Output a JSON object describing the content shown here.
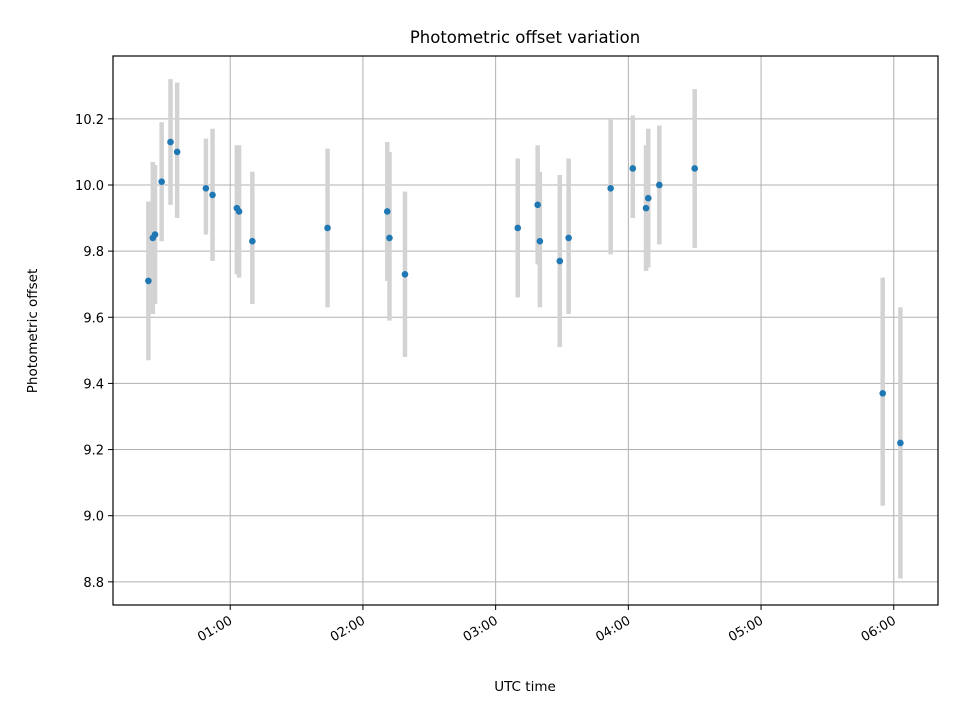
{
  "chart_data": {
    "type": "scatter",
    "title": "Photometric offset variation",
    "xlabel": "UTC time",
    "ylabel": "Photometric offset",
    "x_range": [
      "00:07",
      "06:20"
    ],
    "ylim": [
      8.73,
      10.39
    ],
    "x_ticks": [
      "01:00",
      "02:00",
      "03:00",
      "04:00",
      "05:00",
      "06:00"
    ],
    "y_ticks": [
      8.8,
      9.0,
      9.2,
      9.4,
      9.6,
      9.8,
      10.0,
      10.2
    ],
    "grid": true,
    "colors": {
      "point": "#1f77b4",
      "errorbar": "#d3d3d3",
      "grid": "#b0b0b0"
    },
    "points": [
      {
        "x": "00:23",
        "y": 9.71,
        "lo": 9.47,
        "hi": 9.95
      },
      {
        "x": "00:25",
        "y": 9.84,
        "lo": 9.61,
        "hi": 10.07
      },
      {
        "x": "00:26",
        "y": 9.85,
        "lo": 9.64,
        "hi": 10.06
      },
      {
        "x": "00:29",
        "y": 10.01,
        "lo": 9.83,
        "hi": 10.19
      },
      {
        "x": "00:33",
        "y": 10.13,
        "lo": 9.94,
        "hi": 10.32
      },
      {
        "x": "00:36",
        "y": 10.1,
        "lo": 9.9,
        "hi": 10.31
      },
      {
        "x": "00:49",
        "y": 9.99,
        "lo": 9.85,
        "hi": 10.14
      },
      {
        "x": "00:52",
        "y": 9.97,
        "lo": 9.77,
        "hi": 10.17
      },
      {
        "x": "01:03",
        "y": 9.93,
        "lo": 9.73,
        "hi": 10.12
      },
      {
        "x": "01:04",
        "y": 9.92,
        "lo": 9.72,
        "hi": 10.12
      },
      {
        "x": "01:10",
        "y": 9.83,
        "lo": 9.64,
        "hi": 10.04
      },
      {
        "x": "01:44",
        "y": 9.87,
        "lo": 9.63,
        "hi": 10.11
      },
      {
        "x": "02:11",
        "y": 9.92,
        "lo": 9.71,
        "hi": 10.13
      },
      {
        "x": "02:12",
        "y": 9.84,
        "lo": 9.59,
        "hi": 10.1
      },
      {
        "x": "02:19",
        "y": 9.73,
        "lo": 9.48,
        "hi": 9.98
      },
      {
        "x": "03:10",
        "y": 9.87,
        "lo": 9.66,
        "hi": 10.08
      },
      {
        "x": "03:19",
        "y": 9.94,
        "lo": 9.76,
        "hi": 10.12
      },
      {
        "x": "03:20",
        "y": 9.83,
        "lo": 9.63,
        "hi": 10.04
      },
      {
        "x": "03:29",
        "y": 9.77,
        "lo": 9.51,
        "hi": 10.03
      },
      {
        "x": "03:33",
        "y": 9.84,
        "lo": 9.61,
        "hi": 10.08
      },
      {
        "x": "03:52",
        "y": 9.99,
        "lo": 9.79,
        "hi": 10.2
      },
      {
        "x": "04:02",
        "y": 10.05,
        "lo": 9.9,
        "hi": 10.21
      },
      {
        "x": "04:08",
        "y": 9.93,
        "lo": 9.74,
        "hi": 10.12
      },
      {
        "x": "04:09",
        "y": 9.96,
        "lo": 9.75,
        "hi": 10.17
      },
      {
        "x": "04:14",
        "y": 10.0,
        "lo": 9.82,
        "hi": 10.18
      },
      {
        "x": "04:30",
        "y": 10.05,
        "lo": 9.81,
        "hi": 10.29
      },
      {
        "x": "05:55",
        "y": 9.37,
        "lo": 9.03,
        "hi": 9.72
      },
      {
        "x": "06:03",
        "y": 9.22,
        "lo": 8.81,
        "hi": 9.63
      }
    ]
  }
}
